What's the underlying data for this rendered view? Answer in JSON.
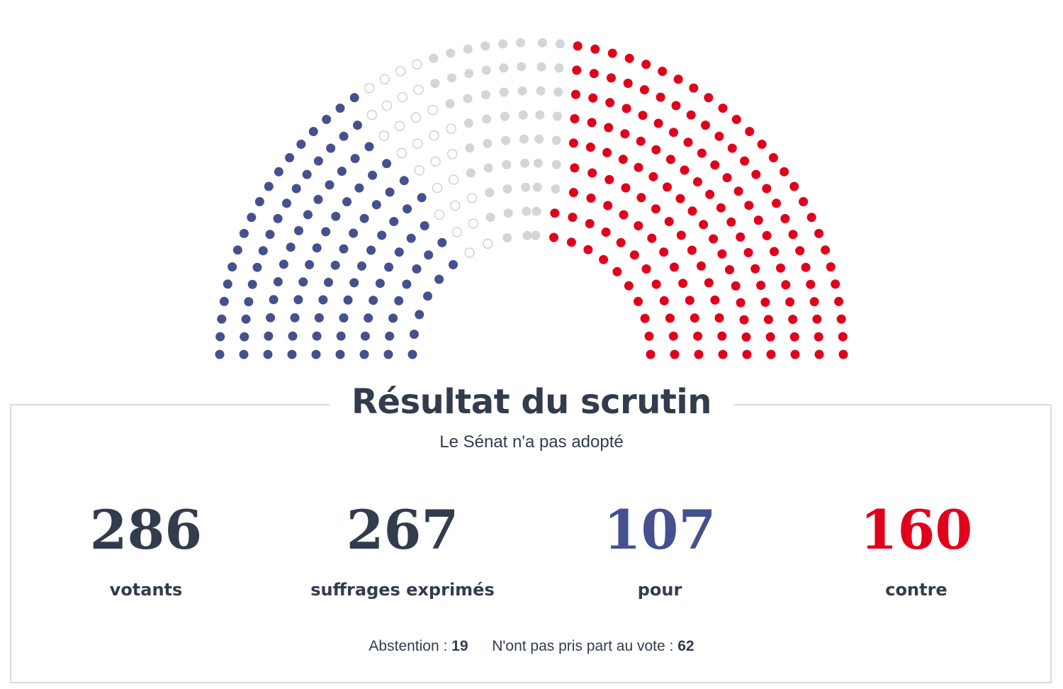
{
  "colors": {
    "pour": "#47508e",
    "contre": "#e0001b",
    "abstention": "#d3d5da",
    "absent": "#c9cbd0",
    "text": "#333c4d",
    "border": "#d9dadd"
  },
  "chart_data": {
    "type": "hemicycle",
    "rows": 9,
    "counts": {
      "pour": 107,
      "contre": 160,
      "abstention": 19,
      "non_votants": 62
    }
  },
  "result": {
    "title": "Résultat du scrutin",
    "subtitle": "Le Sénat n'a pas adopté",
    "stats": [
      {
        "value": "286",
        "label": "votants"
      },
      {
        "value": "267",
        "label": "suffrages exprimés"
      },
      {
        "value": "107",
        "label": "pour"
      },
      {
        "value": "160",
        "label": "contre"
      }
    ],
    "footer": {
      "abstention_label": "Abstention :",
      "abstention_value": "19",
      "non_votants_label": "N'ont pas pris part au vote :",
      "non_votants_value": "62"
    }
  }
}
